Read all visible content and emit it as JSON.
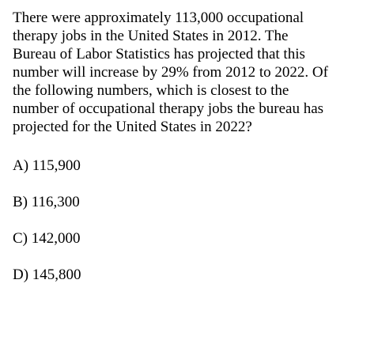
{
  "question": {
    "lines": [
      "There were approximately 113,000 occupational",
      "therapy jobs in the United States in 2012. The",
      "Bureau of Labor Statistics has projected that this",
      "number will increase by 29% from 2012 to 2022. Of",
      "the following numbers, which is closest to the",
      "number of occupational therapy jobs the bureau has",
      "projected for the United States in 2022?"
    ]
  },
  "choices": [
    {
      "label": "A) 115,900"
    },
    {
      "label": "B) 116,300"
    },
    {
      "label": "C) 142,000"
    },
    {
      "label": "D) 145,800"
    }
  ]
}
